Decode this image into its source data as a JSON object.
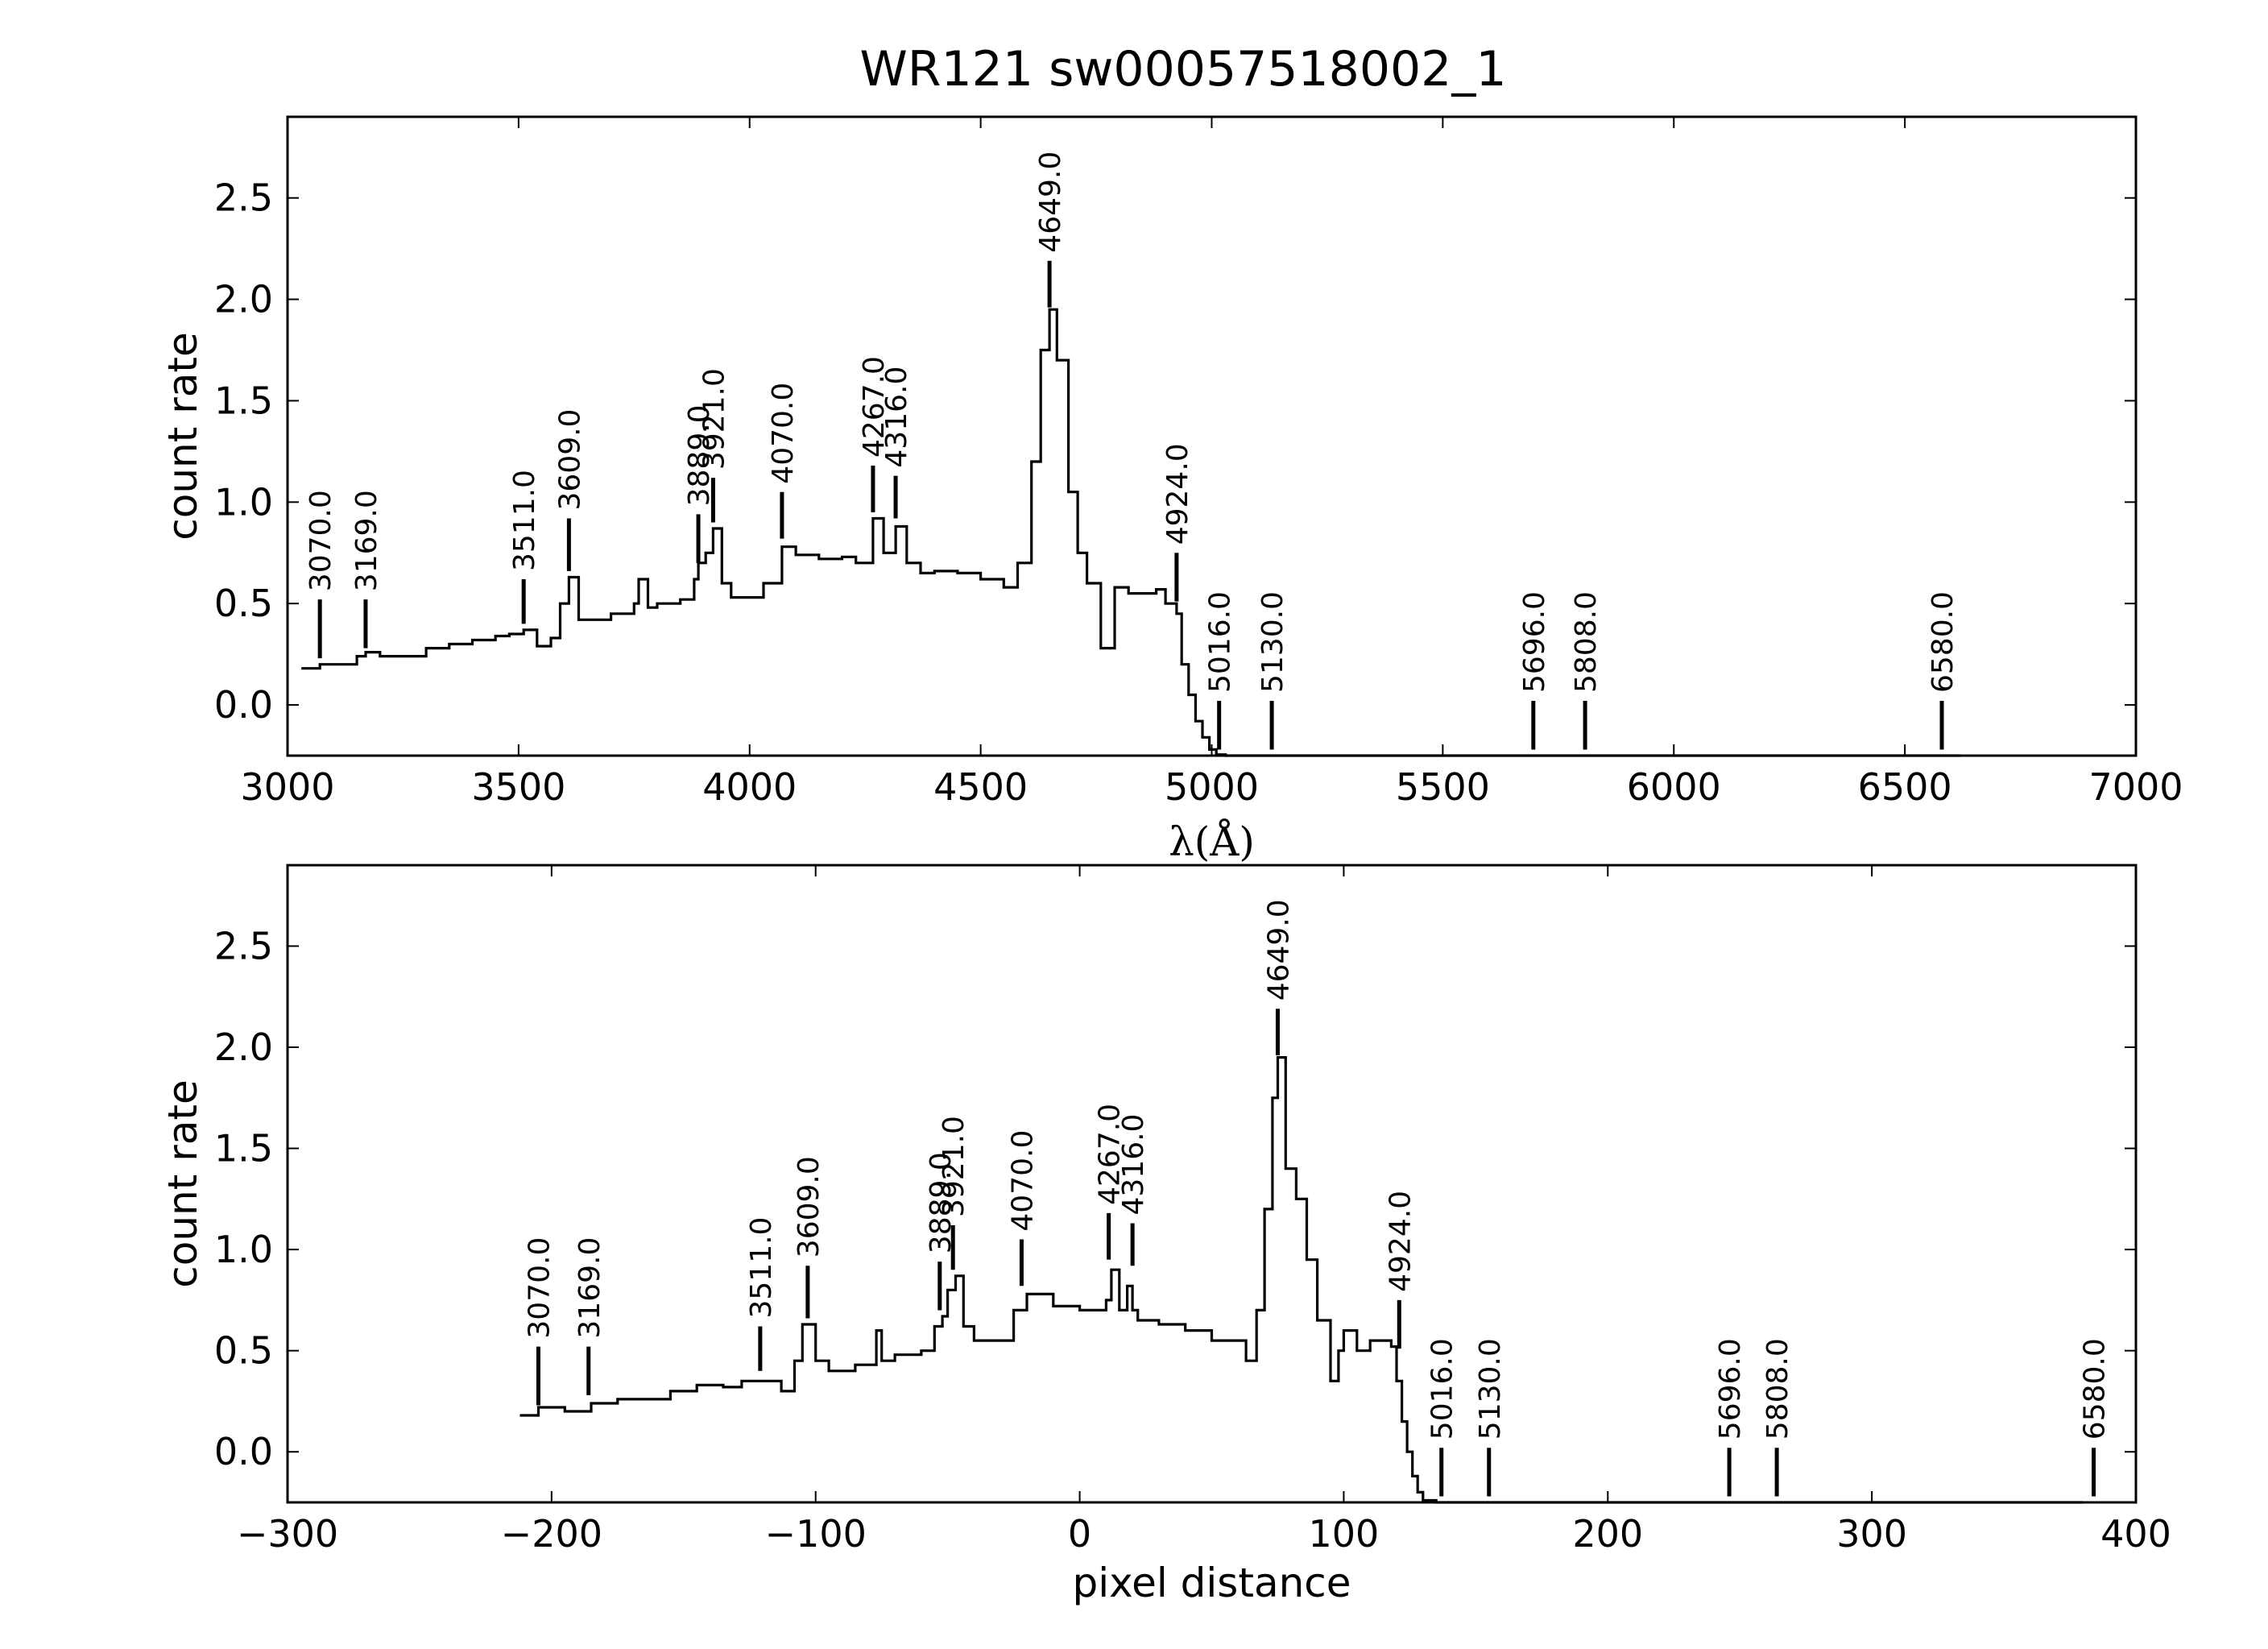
{
  "chart_data": [
    {
      "type": "line",
      "title": "WR121  sw00057518002_1",
      "xlabel": "λ(Å)",
      "ylabel": "count rate",
      "xlim": [
        3000,
        7000
      ],
      "ylim": [
        -0.25,
        2.9
      ],
      "xticks": [
        3000,
        3500,
        4000,
        4500,
        5000,
        5500,
        6000,
        6500,
        7000
      ],
      "yticks": [
        0.0,
        0.5,
        1.0,
        1.5,
        2.0,
        2.5
      ],
      "xtick_labels": [
        "3000",
        "3500",
        "4000",
        "4500",
        "5000",
        "5500",
        "6000",
        "6500",
        "7000"
      ],
      "ytick_labels": [
        "0.0",
        "0.5",
        "1.0",
        "1.5",
        "2.0",
        "2.5"
      ],
      "grid": false,
      "line_color": "#000000",
      "series": [
        {
          "x": [
            3030,
            3070,
            3100,
            3150,
            3169,
            3200,
            3250,
            3300,
            3350,
            3400,
            3450,
            3480,
            3511,
            3540,
            3570,
            3590,
            3609,
            3630,
            3650,
            3700,
            3750,
            3760,
            3780,
            3800,
            3850,
            3880,
            3889,
            3905,
            3921,
            3940,
            3960,
            4000,
            4030,
            4070,
            4100,
            4150,
            4200,
            4230,
            4267,
            4290,
            4316,
            4340,
            4370,
            4400,
            4450,
            4500,
            4550,
            4580,
            4610,
            4630,
            4649,
            4665,
            4690,
            4710,
            4730,
            4760,
            4790,
            4820,
            4850,
            4880,
            4900,
            4924,
            4935,
            4950,
            4965,
            4980,
            4995,
            5010,
            5030,
            5130,
            5500,
            6000,
            6500,
            6620
          ],
          "y": [
            0.18,
            0.2,
            0.2,
            0.24,
            0.26,
            0.24,
            0.24,
            0.28,
            0.3,
            0.32,
            0.34,
            0.35,
            0.37,
            0.29,
            0.33,
            0.5,
            0.63,
            0.42,
            0.42,
            0.45,
            0.5,
            0.62,
            0.48,
            0.5,
            0.52,
            0.62,
            0.7,
            0.75,
            0.87,
            0.6,
            0.53,
            0.53,
            0.6,
            0.78,
            0.74,
            0.72,
            0.73,
            0.7,
            0.92,
            0.75,
            0.88,
            0.7,
            0.65,
            0.66,
            0.65,
            0.62,
            0.58,
            0.7,
            1.2,
            1.75,
            1.95,
            1.7,
            1.05,
            0.75,
            0.6,
            0.28,
            0.58,
            0.55,
            0.55,
            0.57,
            0.5,
            0.45,
            0.2,
            0.05,
            -0.08,
            -0.16,
            -0.22,
            -0.245,
            -0.25,
            -0.25,
            -0.25,
            -0.25,
            -0.25,
            -0.25
          ]
        }
      ],
      "annotations": [
        {
          "x": 3070,
          "label": "3070.0",
          "y_bottom": 0.23,
          "y_top": 0.52
        },
        {
          "x": 3169,
          "label": "3169.0",
          "y_bottom": 0.28,
          "y_top": 0.52
        },
        {
          "x": 3511,
          "label": "3511.0",
          "y_bottom": 0.4,
          "y_top": 0.62
        },
        {
          "x": 3609,
          "label": "3609.0",
          "y_bottom": 0.66,
          "y_top": 0.92
        },
        {
          "x": 3889,
          "label": "3889.0",
          "y_bottom": 0.7,
          "y_top": 0.94
        },
        {
          "x": 3921,
          "label": "3921.0",
          "y_bottom": 0.9,
          "y_top": 1.12
        },
        {
          "x": 4070,
          "label": "4070.0",
          "y_bottom": 0.82,
          "y_top": 1.05
        },
        {
          "x": 4267,
          "label": "4267.0",
          "y_bottom": 0.95,
          "y_top": 1.18
        },
        {
          "x": 4316,
          "label": "4316.0",
          "y_bottom": 0.92,
          "y_top": 1.13
        },
        {
          "x": 4649,
          "label": "4649.0",
          "y_bottom": 1.96,
          "y_top": 2.19
        },
        {
          "x": 4924,
          "label": "4924.0",
          "y_bottom": 0.51,
          "y_top": 0.75
        },
        {
          "x": 5016,
          "label": "5016.0",
          "y_bottom": -0.22,
          "y_top": 0.02
        },
        {
          "x": 5130,
          "label": "5130.0",
          "y_bottom": -0.22,
          "y_top": 0.02
        },
        {
          "x": 5696,
          "label": "5696.0",
          "y_bottom": -0.22,
          "y_top": 0.02
        },
        {
          "x": 5808,
          "label": "5808.0",
          "y_bottom": -0.22,
          "y_top": 0.02
        },
        {
          "x": 6580,
          "label": "6580.0",
          "y_bottom": -0.22,
          "y_top": 0.02
        }
      ]
    },
    {
      "type": "line",
      "title": "",
      "xlabel": "pixel distance",
      "ylabel": "count rate",
      "xlim": [
        -300,
        400
      ],
      "ylim": [
        -0.25,
        2.9
      ],
      "xticks": [
        -300,
        -200,
        -100,
        0,
        100,
        200,
        300,
        400
      ],
      "yticks": [
        0.0,
        0.5,
        1.0,
        1.5,
        2.0,
        2.5
      ],
      "xtick_labels": [
        "−300",
        "−200",
        "−100",
        "0",
        "100",
        "200",
        "300",
        "400"
      ],
      "ytick_labels": [
        "0.0",
        "0.5",
        "1.0",
        "1.5",
        "2.0",
        "2.5"
      ],
      "grid": false,
      "line_color": "#000000",
      "series": [
        {
          "x": [
            -212,
            -205,
            -195,
            -185,
            -175,
            -165,
            -155,
            -145,
            -135,
            -128,
            -121,
            -113,
            -108,
            -105,
            -100,
            -95,
            -85,
            -77,
            -75,
            -70,
            -60,
            -55,
            -52,
            -50,
            -47,
            -44,
            -40,
            -30,
            -25,
            -20,
            -10,
            0,
            10,
            12,
            15,
            18,
            20,
            22,
            25,
            30,
            40,
            50,
            60,
            63,
            67,
            70,
            73,
            75,
            78,
            82,
            86,
            90,
            95,
            98,
            100,
            105,
            110,
            115,
            118,
            120,
            122,
            124,
            126,
            128,
            130,
            135,
            155,
            200,
            300,
            380
          ],
          "y": [
            0.18,
            0.22,
            0.2,
            0.24,
            0.26,
            0.26,
            0.3,
            0.33,
            0.32,
            0.35,
            0.35,
            0.3,
            0.45,
            0.63,
            0.45,
            0.4,
            0.43,
            0.6,
            0.45,
            0.48,
            0.5,
            0.62,
            0.67,
            0.8,
            0.87,
            0.62,
            0.55,
            0.55,
            0.7,
            0.78,
            0.72,
            0.7,
            0.75,
            0.9,
            0.7,
            0.82,
            0.7,
            0.65,
            0.65,
            0.63,
            0.6,
            0.55,
            0.55,
            0.45,
            0.7,
            1.2,
            1.75,
            1.95,
            1.4,
            1.25,
            0.95,
            0.65,
            0.35,
            0.5,
            0.6,
            0.5,
            0.55,
            0.55,
            0.52,
            0.35,
            0.15,
            0.0,
            -0.12,
            -0.2,
            -0.24,
            -0.25,
            -0.25,
            -0.25,
            -0.25,
            -0.25
          ]
        }
      ],
      "annotations": [
        {
          "x": -205,
          "label": "3070.0",
          "y_bottom": 0.23,
          "y_top": 0.52
        },
        {
          "x": -186,
          "label": "3169.0",
          "y_bottom": 0.28,
          "y_top": 0.52
        },
        {
          "x": -121,
          "label": "3511.0",
          "y_bottom": 0.4,
          "y_top": 0.62
        },
        {
          "x": -103,
          "label": "3609.0",
          "y_bottom": 0.66,
          "y_top": 0.92
        },
        {
          "x": -53,
          "label": "3889.0",
          "y_bottom": 0.7,
          "y_top": 0.94
        },
        {
          "x": -48,
          "label": "3921.0",
          "y_bottom": 0.9,
          "y_top": 1.12
        },
        {
          "x": -22,
          "label": "4070.0",
          "y_bottom": 0.82,
          "y_top": 1.05
        },
        {
          "x": 11,
          "label": "4267.0",
          "y_bottom": 0.95,
          "y_top": 1.18
        },
        {
          "x": 20,
          "label": "4316.0",
          "y_bottom": 0.92,
          "y_top": 1.13
        },
        {
          "x": 75,
          "label": "4649.0",
          "y_bottom": 1.96,
          "y_top": 2.19
        },
        {
          "x": 121,
          "label": "4924.0",
          "y_bottom": 0.51,
          "y_top": 0.75
        },
        {
          "x": 137,
          "label": "5016.0",
          "y_bottom": -0.22,
          "y_top": 0.02
        },
        {
          "x": 155,
          "label": "5130.0",
          "y_bottom": -0.22,
          "y_top": 0.02
        },
        {
          "x": 246,
          "label": "5696.0",
          "y_bottom": -0.22,
          "y_top": 0.02
        },
        {
          "x": 264,
          "label": "5808.0",
          "y_bottom": -0.22,
          "y_top": 0.02
        },
        {
          "x": 384,
          "label": "6580.0",
          "y_bottom": -0.22,
          "y_top": 0.02
        }
      ]
    }
  ]
}
